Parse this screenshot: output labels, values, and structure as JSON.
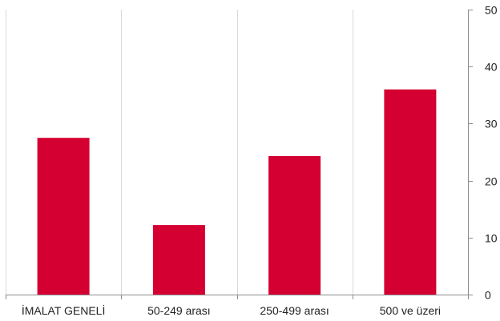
{
  "chart_data": {
    "type": "bar",
    "categories": [
      "İMALAT GENELİ",
      "50-249 arası",
      "250-499 arası",
      "500 ve üzeri"
    ],
    "values": [
      27.5,
      12.2,
      24.3,
      36.0
    ],
    "title": "",
    "xlabel": "",
    "ylabel": "",
    "ylim": [
      0,
      50
    ],
    "yticks": [
      0,
      10,
      20,
      30,
      40,
      50
    ],
    "y_axis_side": "right",
    "grid": "vertical",
    "legend": "none",
    "bar_color": "#d50032",
    "grid_color": "#d9d9d9",
    "axis_color": "#8c8c8c"
  }
}
